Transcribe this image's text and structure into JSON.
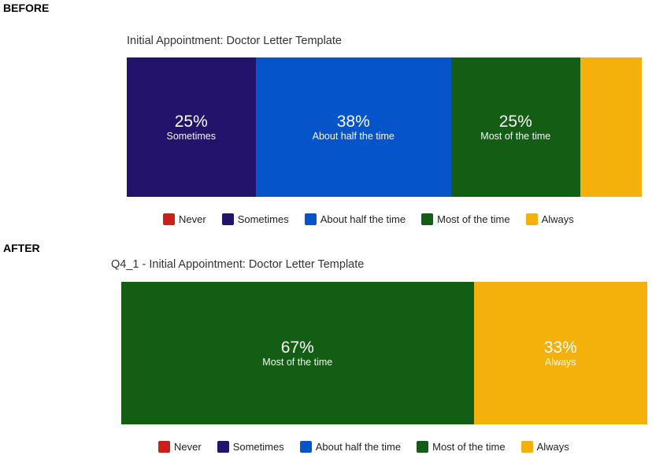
{
  "labels": {
    "before": "BEFORE",
    "after": "AFTER"
  },
  "categories": [
    "Never",
    "Sometimes",
    "About half the time",
    "Most of the time",
    "Always"
  ],
  "colors": {
    "Never": "#cc1f1a",
    "Sometimes": "#24136b",
    "About half the time": "#0654c9",
    "Most of the time": "#135d14",
    "Always": "#f5b10b"
  },
  "chart_data": [
    {
      "type": "bar",
      "orientation": "horizontal-stacked-100",
      "title": "Initial Appointment: Doctor Letter Template",
      "categories": [
        "Never",
        "Sometimes",
        "About half the time",
        "Most of the time",
        "Always"
      ],
      "values": [
        0,
        25,
        38,
        25,
        12
      ],
      "data_labels": [
        "",
        "25%",
        "38%",
        "25%",
        ""
      ],
      "legend": "bottom"
    },
    {
      "type": "bar",
      "orientation": "horizontal-stacked-100",
      "title": "Q4_1 - Initial Appointment: Doctor Letter Template",
      "categories": [
        "Never",
        "Sometimes",
        "About half the time",
        "Most of the time",
        "Always"
      ],
      "values": [
        0,
        0,
        0,
        67,
        33
      ],
      "data_labels": [
        "",
        "",
        "",
        "67%",
        "33%"
      ],
      "legend": "bottom"
    }
  ]
}
